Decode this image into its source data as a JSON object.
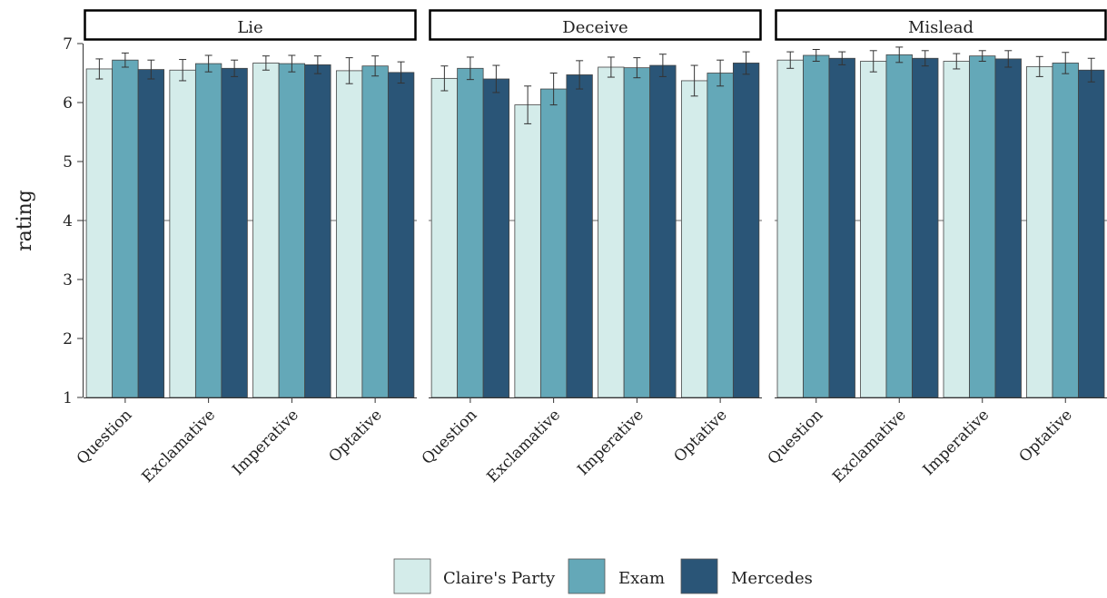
{
  "chart_data": {
    "type": "bar",
    "ylabel": "rating",
    "xlabel": "",
    "ylim": [
      1,
      7
    ],
    "yticks": [
      1,
      2,
      3,
      4,
      5,
      6,
      7
    ],
    "reference_line": 4,
    "legend_position": "bottom",
    "categories": [
      "Question",
      "Exclamative",
      "Imperative",
      "Optative"
    ],
    "series_names": [
      "Claire's Party",
      "Exam",
      "Mercedes"
    ],
    "colors": [
      "#d4ecea",
      "#64a8b8",
      "#2a5577"
    ],
    "panels": [
      {
        "title": "Lie",
        "values": [
          [
            6.57,
            6.72,
            6.56
          ],
          [
            6.55,
            6.66,
            6.58
          ],
          [
            6.67,
            6.66,
            6.64
          ],
          [
            6.54,
            6.62,
            6.51
          ]
        ],
        "errors": [
          [
            0.17,
            0.12,
            0.16
          ],
          [
            0.18,
            0.14,
            0.14
          ],
          [
            0.12,
            0.14,
            0.15
          ],
          [
            0.22,
            0.17,
            0.18
          ]
        ]
      },
      {
        "title": "Deceive",
        "values": [
          [
            6.41,
            6.58,
            6.4
          ],
          [
            5.96,
            6.23,
            6.47
          ],
          [
            6.6,
            6.59,
            6.63
          ],
          [
            6.37,
            6.5,
            6.67
          ]
        ],
        "errors": [
          [
            0.21,
            0.19,
            0.23
          ],
          [
            0.32,
            0.27,
            0.24
          ],
          [
            0.17,
            0.17,
            0.19
          ],
          [
            0.26,
            0.22,
            0.19
          ]
        ]
      },
      {
        "title": "Mislead",
        "values": [
          [
            6.72,
            6.8,
            6.75
          ],
          [
            6.7,
            6.81,
            6.75
          ],
          [
            6.7,
            6.79,
            6.74
          ],
          [
            6.61,
            6.67,
            6.55
          ]
        ],
        "errors": [
          [
            0.14,
            0.1,
            0.11
          ],
          [
            0.18,
            0.13,
            0.13
          ],
          [
            0.13,
            0.09,
            0.14
          ],
          [
            0.17,
            0.18,
            0.2
          ]
        ]
      }
    ]
  }
}
